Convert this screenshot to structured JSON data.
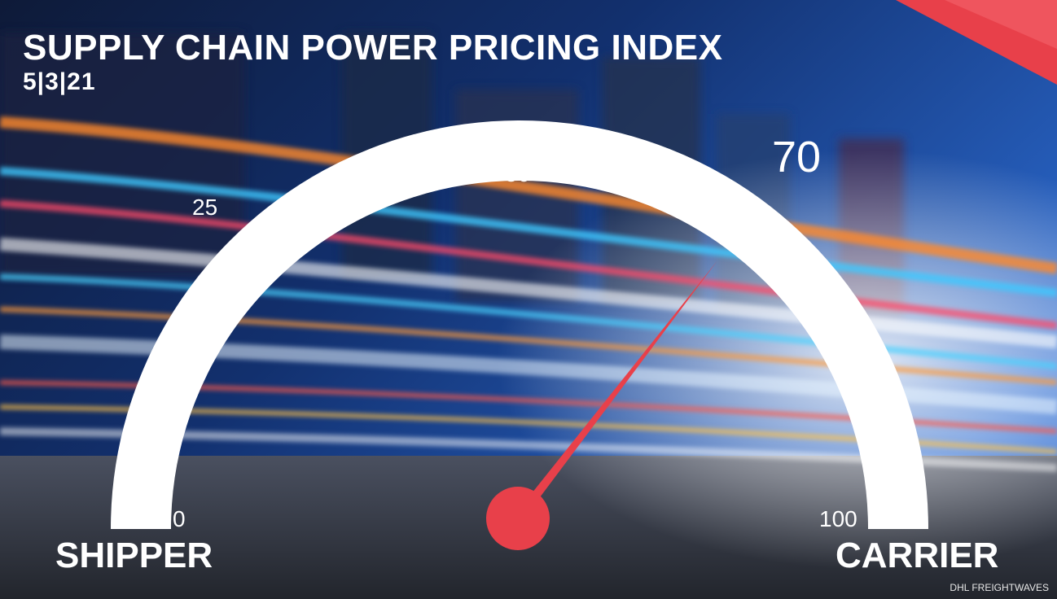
{
  "header": {
    "title": "SUPPLY CHAIN POWER PRICING INDEX",
    "date": "5|3|21"
  },
  "gauge": {
    "value": 70,
    "value_label": "70",
    "min": 0,
    "max": 100,
    "ticks": {
      "t0": "0",
      "t25": "25",
      "t50": "50",
      "t100": "100"
    },
    "left_label": "SHIPPER",
    "right_label": "CARRIER",
    "arc_color": "#ffffff",
    "needle_color": "#e8404a"
  },
  "footer": {
    "credit": "DHL FREIGHTWAVES"
  },
  "colors": {
    "accent": "#e8404a",
    "sky": "#1a3f9a",
    "road": "#3a3f48"
  }
}
